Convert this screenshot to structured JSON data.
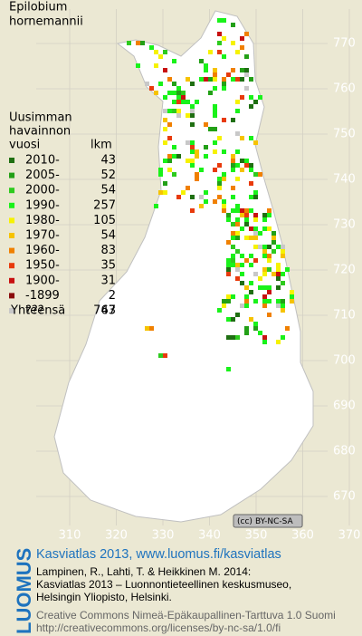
{
  "title": [
    "Epilobium",
    "hornemannii"
  ],
  "legend": {
    "header": [
      "Uusimman",
      "havainnon",
      "vuosi"
    ],
    "count_header": "lkm",
    "rows": [
      {
        "label": "2010-",
        "count": 43,
        "color": "#1f6f12"
      },
      {
        "label": "2005-",
        "count": 52,
        "color": "#23a017"
      },
      {
        "label": "2000-",
        "count": 54,
        "color": "#2ecb1e"
      },
      {
        "label": "1990-",
        "count": 257,
        "color": "#19f21a"
      },
      {
        "label": "1980-",
        "count": 105,
        "color": "#f6f200"
      },
      {
        "label": "1970-",
        "count": 54,
        "color": "#f6c300"
      },
      {
        "label": "1960-",
        "count": 83,
        "color": "#f08000"
      },
      {
        "label": "1950-",
        "count": 35,
        "color": "#e83a0c"
      },
      {
        "label": "1900-",
        "count": 31,
        "color": "#c81010"
      },
      {
        "label": "-1899",
        "count": 2,
        "color": "#8a0c0c"
      },
      {
        "label": "???",
        "count": 47,
        "color": "#c8c8c8"
      }
    ],
    "total_label": "Yhteensä",
    "total": 763
  },
  "map": {
    "y_ticks": [
      770,
      760,
      750,
      740,
      730,
      720,
      710,
      700,
      690,
      680,
      670
    ],
    "x_ticks": [
      310,
      320,
      330,
      340,
      350,
      360,
      370
    ]
  },
  "license_badge": "BY-NC-SA",
  "footer": {
    "brand": "LUOMUS",
    "heading": "Kasviatlas 2013, www.luomus.fi/kasviatlas",
    "citation": [
      "Lampinen, R., Lahti, T. & Heikkinen M. 2014:",
      "Kasviatlas 2013 – Luonnontieteellinen keskusmuseo,",
      "Helsingin Yliopisto, Helsinki."
    ],
    "license": [
      "Creative Commons Nimeä-Epäkaupallinen-Tarttuva 1.0 Suomi",
      "http://creativecommons.org/licenses/by-nc-sa/1.0/fi"
    ]
  }
}
